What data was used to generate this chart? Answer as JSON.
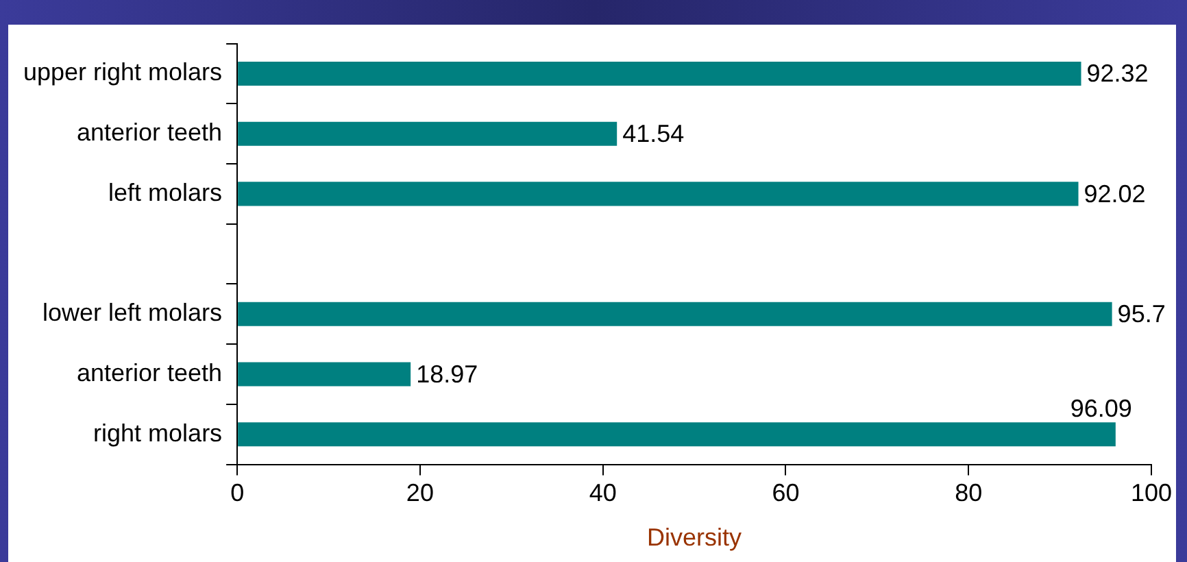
{
  "chart_data": {
    "type": "bar",
    "orientation": "horizontal",
    "xlabel": "Diversity",
    "categories": [
      "upper right molars",
      "anterior teeth",
      "left molars",
      null,
      "lower left molars",
      "anterior teeth",
      "right molars"
    ],
    "values": [
      92.32,
      41.54,
      92.02,
      null,
      95.7,
      18.97,
      96.09
    ],
    "color": "#008080",
    "xlim": [
      0,
      100
    ],
    "xticks": [
      0,
      20,
      40,
      60,
      80,
      100
    ],
    "grid": false,
    "data_labels": true
  }
}
